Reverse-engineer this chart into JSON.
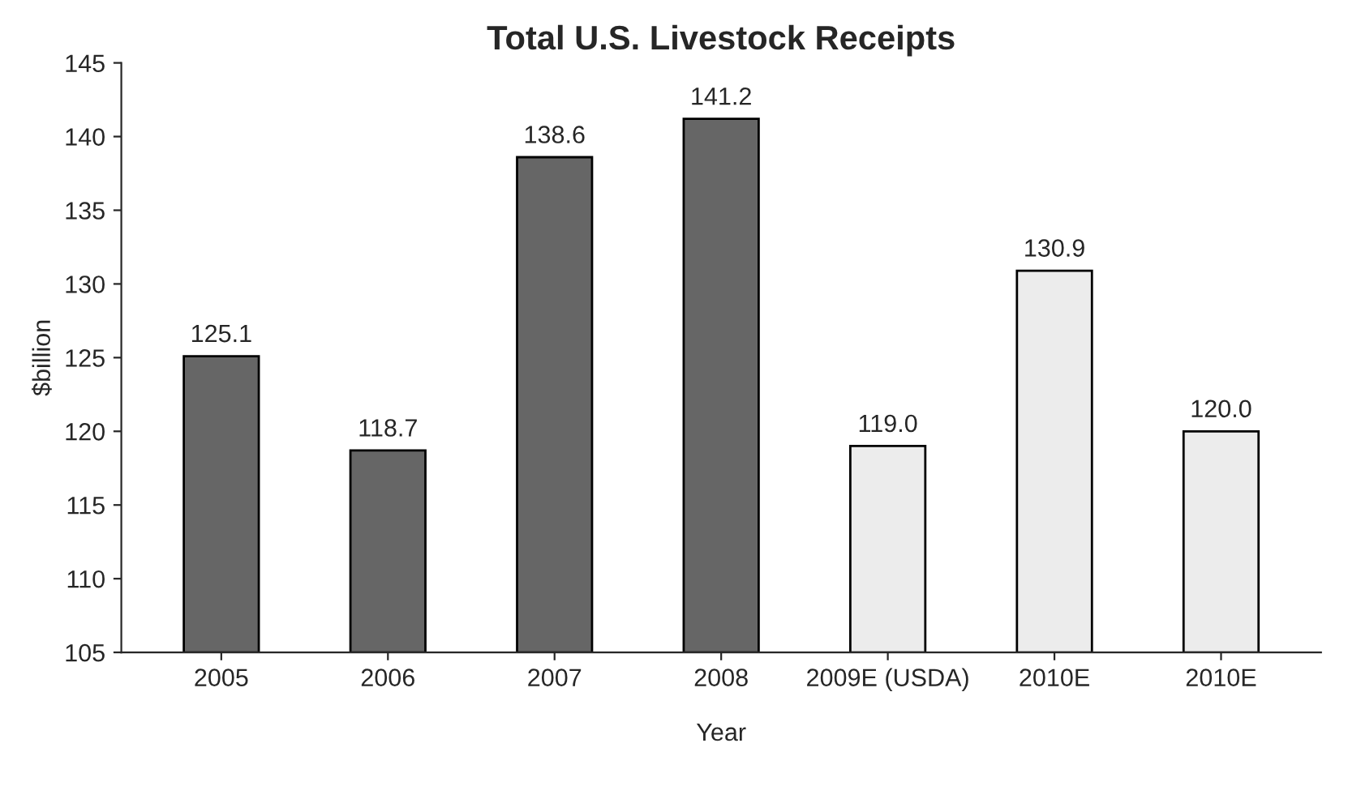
{
  "chart_data": {
    "type": "bar",
    "title": "Total U.S. Livestock Receipts",
    "xlabel": "Year",
    "ylabel": "$billion",
    "categories": [
      "2005",
      "2006",
      "2007",
      "2008",
      "2009E (USDA)",
      "2010E",
      "2010E"
    ],
    "values": [
      125.1,
      118.7,
      138.6,
      141.2,
      119.0,
      130.9,
      120.0
    ],
    "value_labels": [
      "125.1",
      "118.7",
      "138.6",
      "141.2",
      "119.0",
      "130.9",
      "120.0"
    ],
    "colors": [
      "#666666",
      "#666666",
      "#666666",
      "#666666",
      "#ececec",
      "#ececec",
      "#ececec"
    ],
    "ylim": [
      105,
      145
    ],
    "yticks": [
      105,
      110,
      115,
      120,
      125,
      130,
      135,
      140,
      145
    ],
    "grid": false,
    "legend": false
  }
}
